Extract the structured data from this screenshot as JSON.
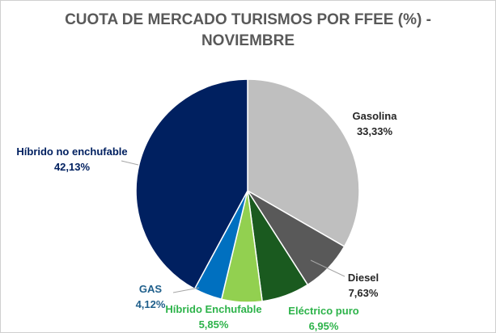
{
  "chart_data": {
    "type": "pie",
    "title_line1": "CUOTA DE MERCADO TURISMOS POR FFEE (%) -",
    "title_line2": "NOVIEMBRE",
    "slices": [
      {
        "name": "Gasolina",
        "value": 33.33,
        "value_label": "33,33%",
        "color": "#bfbfbf",
        "label_color": "#262626"
      },
      {
        "name": "Diesel",
        "value": 7.63,
        "value_label": "7,63%",
        "color": "#595959",
        "label_color": "#262626"
      },
      {
        "name": "Eléctrico puro",
        "value": 6.95,
        "value_label": "6,95%",
        "color": "#1a5a1f",
        "label_color": "#2db34a"
      },
      {
        "name": "Híbrido Enchufable",
        "value": 5.85,
        "value_label": "5,85%",
        "color": "#92d050",
        "label_color": "#2db34a"
      },
      {
        "name": "GAS",
        "value": 4.12,
        "value_label": "4,12%",
        "color": "#0070c0",
        "label_color": "#1f5f8b"
      },
      {
        "name": "Híbrido no enchufable",
        "value": 42.13,
        "value_label": "42,13%",
        "color": "#002060",
        "label_color": "#002060"
      }
    ]
  }
}
